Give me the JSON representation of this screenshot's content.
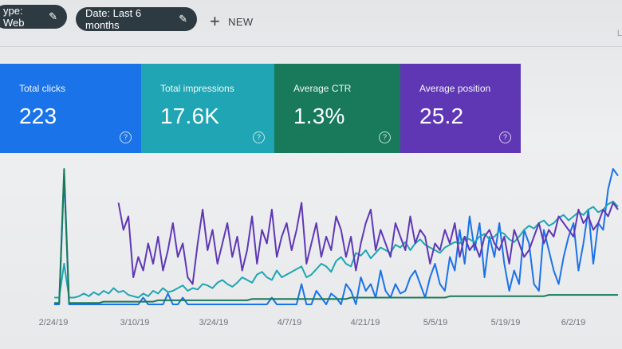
{
  "filters": {
    "type_chip": "ype: Web",
    "date_chip": "Date: Last 6 months",
    "new_label": "NEW",
    "corner_text": "L"
  },
  "cards": {
    "clicks": {
      "label": "Total clicks",
      "value": "223"
    },
    "impressions": {
      "label": "Total impressions",
      "value": "17.6K"
    },
    "ctr": {
      "label": "Average CTR",
      "value": "1.3%"
    },
    "position": {
      "label": "Average position",
      "value": "25.2"
    }
  },
  "colors": {
    "clicks": "#1a73e8",
    "impressions": "#1fa5b3",
    "ctr": "#187a5a",
    "position": "#5f37b5"
  },
  "icons": {
    "edit": "pencil-icon",
    "add": "plus-icon",
    "help": "help-circle-icon"
  },
  "chart_data": {
    "type": "line",
    "x_ticks": [
      "2/24/19",
      "3/10/19",
      "3/24/19",
      "4/7/19",
      "4/21/19",
      "5/5/19",
      "5/19/19",
      "6/2/19"
    ],
    "series": [
      {
        "key": "clicks",
        "color": "#1a73e8",
        "values": [
          0,
          0,
          95,
          0,
          0,
          0,
          0,
          0,
          0,
          0,
          0,
          0,
          0,
          0,
          0,
          0,
          0,
          0,
          5,
          0,
          0,
          0,
          0,
          8,
          0,
          0,
          5,
          0,
          0,
          0,
          0,
          0,
          0,
          0,
          0,
          0,
          0,
          0,
          0,
          0,
          0,
          0,
          0,
          0,
          5,
          0,
          0,
          0,
          0,
          0,
          15,
          0,
          0,
          10,
          5,
          0,
          8,
          5,
          0,
          15,
          10,
          0,
          20,
          10,
          15,
          5,
          25,
          10,
          5,
          15,
          8,
          10,
          20,
          25,
          15,
          5,
          20,
          30,
          15,
          10,
          35,
          25,
          55,
          30,
          65,
          40,
          60,
          20,
          50,
          35,
          60,
          30,
          10,
          25,
          15,
          55,
          45,
          15,
          10,
          55,
          40,
          25,
          15,
          35,
          50,
          60,
          25,
          45,
          70,
          30,
          60,
          55,
          85,
          100,
          95
        ]
      },
      {
        "key": "impressions",
        "color": "#1fa5b3",
        "values": [
          5,
          5,
          30,
          5,
          5,
          6,
          8,
          6,
          9,
          7,
          10,
          8,
          12,
          9,
          10,
          7,
          6,
          5,
          8,
          6,
          10,
          8,
          12,
          9,
          10,
          12,
          14,
          10,
          12,
          11,
          15,
          14,
          12,
          16,
          18,
          15,
          13,
          16,
          20,
          18,
          16,
          22,
          24,
          20,
          18,
          25,
          20,
          22,
          24,
          26,
          28,
          20,
          22,
          26,
          30,
          28,
          24,
          32,
          35,
          30,
          28,
          38,
          36,
          40,
          34,
          38,
          42,
          40,
          38,
          44,
          42,
          46,
          40,
          45,
          48,
          44,
          42,
          40,
          38,
          42,
          44,
          46,
          45,
          50,
          48,
          46,
          50,
          52,
          48,
          50,
          54,
          52,
          48,
          46,
          50,
          55,
          58,
          56,
          60,
          62,
          58,
          60,
          64,
          66,
          62,
          65,
          68,
          66,
          70,
          72,
          68,
          70,
          74,
          76,
          72
        ]
      },
      {
        "key": "ctr",
        "color": "#187a5a",
        "values": [
          1,
          1,
          100,
          1,
          1,
          1,
          1,
          1,
          1,
          1,
          2,
          2,
          2,
          2,
          2,
          2,
          2,
          2,
          2,
          2,
          2,
          3,
          3,
          3,
          3,
          3,
          3,
          3,
          3,
          3,
          3,
          3,
          3,
          3,
          3,
          3,
          3,
          3,
          3,
          3,
          4,
          4,
          4,
          4,
          4,
          4,
          4,
          4,
          4,
          4,
          4,
          4,
          4,
          4,
          4,
          4,
          4,
          4,
          4,
          4,
          5,
          5,
          5,
          5,
          5,
          5,
          5,
          5,
          5,
          5,
          5,
          5,
          5,
          5,
          5,
          5,
          5,
          5,
          5,
          5,
          6,
          6,
          6,
          6,
          6,
          6,
          6,
          6,
          6,
          6,
          6,
          6,
          6,
          6,
          6,
          6,
          6,
          6,
          6,
          6,
          7,
          7,
          7,
          7,
          7,
          7,
          7,
          7,
          7,
          7,
          7,
          7,
          7,
          7,
          7
        ]
      },
      {
        "key": "position",
        "color": "#5f37b5",
        "values": [
          null,
          null,
          null,
          null,
          null,
          null,
          null,
          null,
          null,
          null,
          null,
          null,
          null,
          75,
          55,
          65,
          20,
          35,
          25,
          45,
          30,
          50,
          25,
          40,
          60,
          35,
          45,
          20,
          15,
          45,
          70,
          40,
          55,
          30,
          45,
          60,
          35,
          50,
          25,
          40,
          65,
          30,
          55,
          45,
          70,
          35,
          50,
          60,
          40,
          55,
          75,
          30,
          45,
          60,
          35,
          50,
          40,
          65,
          55,
          35,
          50,
          25,
          45,
          60,
          70,
          40,
          55,
          45,
          35,
          60,
          50,
          40,
          65,
          45,
          55,
          50,
          30,
          45,
          40,
          55,
          45,
          60,
          35,
          50,
          40,
          45,
          35,
          50,
          55,
          45,
          40,
          50,
          30,
          55,
          45,
          35,
          40,
          50,
          60,
          45,
          55,
          50,
          65,
          60,
          55,
          50,
          70,
          60,
          65,
          55,
          60,
          70,
          65,
          75,
          70
        ]
      }
    ]
  }
}
